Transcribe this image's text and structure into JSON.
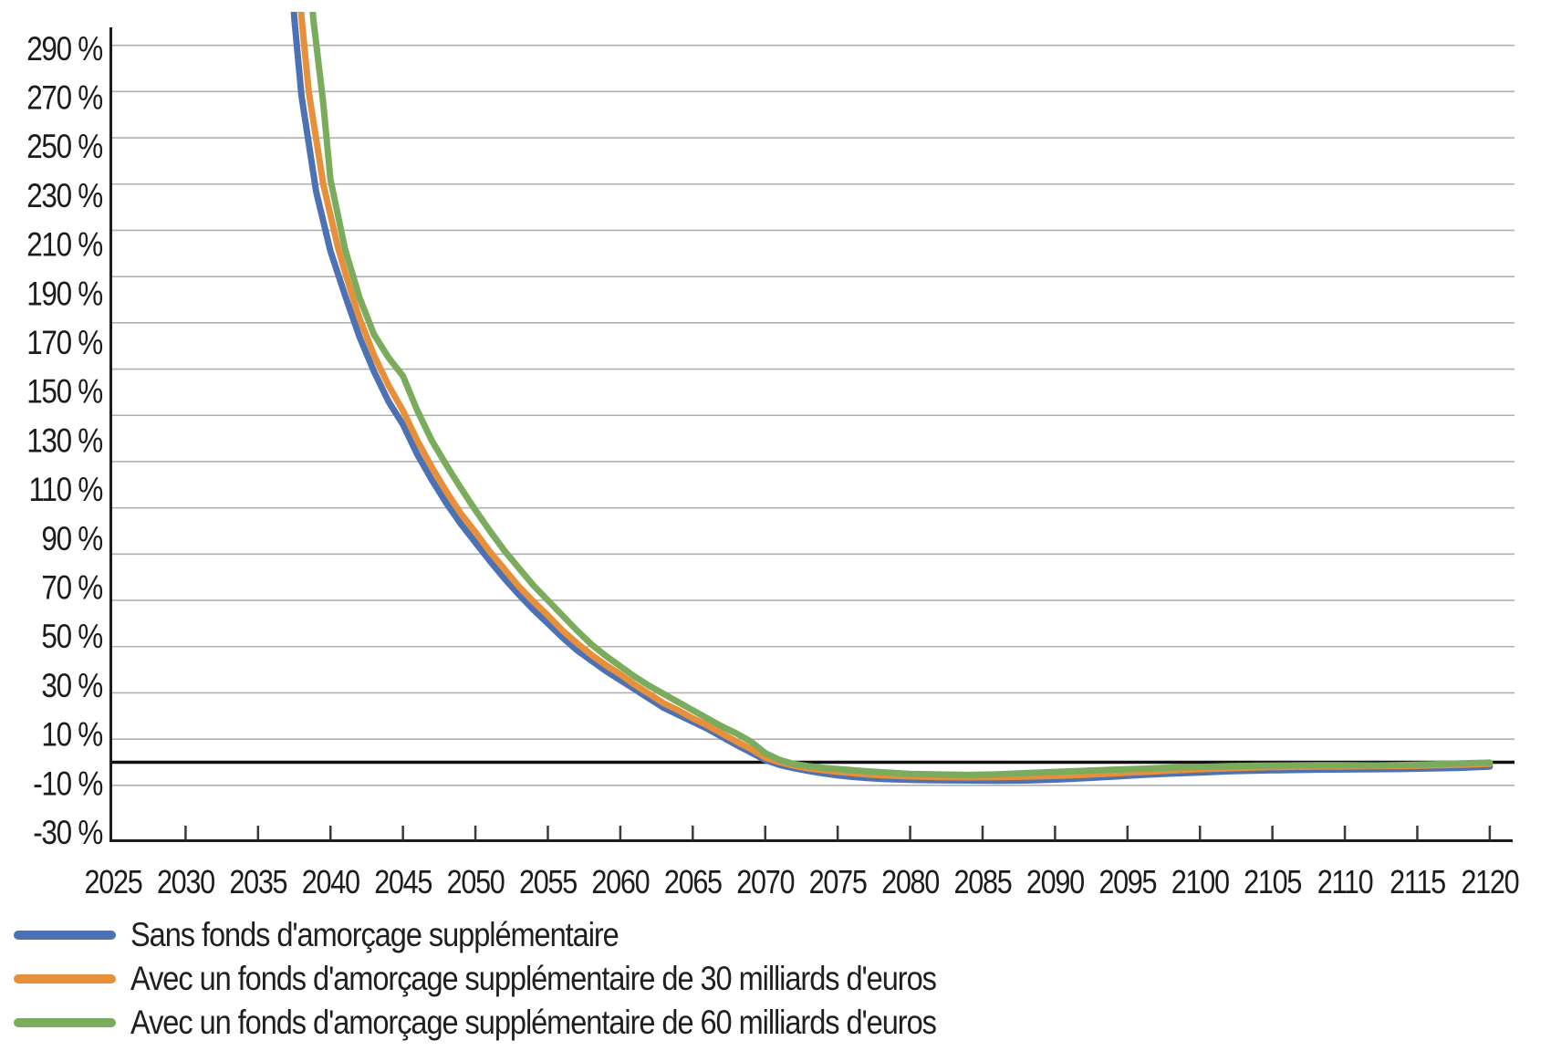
{
  "chart_data": {
    "type": "line",
    "title": "",
    "xlabel": "",
    "ylabel": "",
    "grid": "horizontal",
    "zero_line": true,
    "legend_position": "bottom-left",
    "xlim": [
      2024.8,
      2121.7
    ],
    "ylim": [
      -33,
      324
    ],
    "x_ticks": [
      2025,
      2030,
      2035,
      2040,
      2045,
      2050,
      2055,
      2060,
      2065,
      2070,
      2075,
      2080,
      2085,
      2090,
      2095,
      2100,
      2105,
      2110,
      2115,
      2120
    ],
    "y_ticks": [
      -30,
      -10,
      10,
      30,
      50,
      70,
      90,
      110,
      130,
      150,
      170,
      190,
      210,
      230,
      250,
      270,
      290
    ],
    "y_tick_suffix": " %",
    "y_gridlines": {
      "from": -10,
      "to": 310,
      "step": 20
    },
    "colors": {
      "grid": "#b0b0b0",
      "axis": "#1c1c1c",
      "zero_line": "#111111",
      "text": "#1f1f1f",
      "background": "#ffffff"
    },
    "series": [
      {
        "name": "Sans fonds d'amorçage supplémentaire",
        "color": "#4D72B3",
        "points": [
          [
            2036.6,
            420
          ],
          [
            2037.5,
            322
          ],
          [
            2038,
            288
          ],
          [
            2039,
            247
          ],
          [
            2040,
            221
          ],
          [
            2041,
            202
          ],
          [
            2042,
            184
          ],
          [
            2043,
            169
          ],
          [
            2044,
            156
          ],
          [
            2045,
            146
          ],
          [
            2046,
            133
          ],
          [
            2047,
            122
          ],
          [
            2048,
            112
          ],
          [
            2049,
            103
          ],
          [
            2050,
            95
          ],
          [
            2051,
            87
          ],
          [
            2052,
            79.5
          ],
          [
            2053,
            72.5
          ],
          [
            2054,
            66
          ],
          [
            2055,
            60
          ],
          [
            2056,
            54
          ],
          [
            2057,
            48.5
          ],
          [
            2058,
            44
          ],
          [
            2059,
            39.5
          ],
          [
            2060,
            35.5
          ],
          [
            2061,
            31.5
          ],
          [
            2062,
            27.5
          ],
          [
            2063,
            23.5
          ],
          [
            2064,
            20.5
          ],
          [
            2065,
            17.5
          ],
          [
            2066,
            14.5
          ],
          [
            2067,
            11
          ],
          [
            2068,
            7.5
          ],
          [
            2069,
            4.3
          ],
          [
            2070,
            1
          ],
          [
            2071,
            -1.2
          ],
          [
            2072,
            -2.6
          ],
          [
            2073,
            -3.8
          ],
          [
            2074,
            -4.8
          ],
          [
            2075,
            -5.7
          ],
          [
            2076,
            -6.3
          ],
          [
            2077,
            -6.8
          ],
          [
            2078,
            -7.2
          ],
          [
            2080,
            -7.6
          ],
          [
            2082,
            -7.8
          ],
          [
            2084,
            -7.9
          ],
          [
            2086,
            -8
          ],
          [
            2088,
            -7.9
          ],
          [
            2090,
            -7.5
          ],
          [
            2092,
            -6.9
          ],
          [
            2094,
            -6.2
          ],
          [
            2096,
            -5.5
          ],
          [
            2098,
            -4.9
          ],
          [
            2100,
            -4.4
          ],
          [
            2102,
            -3.9
          ],
          [
            2104,
            -3.6
          ],
          [
            2106,
            -3.4
          ],
          [
            2108,
            -3.2
          ],
          [
            2110,
            -3.1
          ],
          [
            2112,
            -3
          ],
          [
            2114,
            -2.9
          ],
          [
            2116,
            -2.7
          ],
          [
            2118,
            -2.4
          ],
          [
            2120,
            -1.9
          ]
        ]
      },
      {
        "name": "Avec un fonds d'amorçage supplémentaire de 30 milliards d'euros",
        "color": "#E88F3C",
        "points": [
          [
            2037.1,
            420
          ],
          [
            2038,
            322
          ],
          [
            2038.5,
            290
          ],
          [
            2039.5,
            250
          ],
          [
            2040.5,
            223
          ],
          [
            2041,
            212
          ],
          [
            2042,
            192
          ],
          [
            2043,
            176
          ],
          [
            2044,
            163
          ],
          [
            2045,
            152
          ],
          [
            2046,
            139
          ],
          [
            2047,
            127.5
          ],
          [
            2048,
            117
          ],
          [
            2049,
            107.5
          ],
          [
            2050,
            99.5
          ],
          [
            2051,
            91
          ],
          [
            2052,
            83.5
          ],
          [
            2053,
            76
          ],
          [
            2054,
            69.5
          ],
          [
            2055,
            63.5
          ],
          [
            2056,
            57
          ],
          [
            2057,
            51.5
          ],
          [
            2058,
            46.5
          ],
          [
            2059,
            42
          ],
          [
            2060,
            38
          ],
          [
            2061,
            33.5
          ],
          [
            2062,
            29.5
          ],
          [
            2063,
            25.5
          ],
          [
            2064,
            22.5
          ],
          [
            2065,
            19
          ],
          [
            2066,
            16
          ],
          [
            2067,
            12.5
          ],
          [
            2068,
            9
          ],
          [
            2069,
            5.8
          ],
          [
            2070,
            2
          ],
          [
            2071,
            0
          ],
          [
            2072,
            -1.5
          ],
          [
            2073,
            -2.7
          ],
          [
            2074,
            -3.4
          ],
          [
            2075,
            -4.1
          ],
          [
            2076,
            -4.7
          ],
          [
            2077,
            -5.2
          ],
          [
            2078,
            -5.6
          ],
          [
            2080,
            -6.1
          ],
          [
            2082,
            -6.4
          ],
          [
            2084,
            -6.5
          ],
          [
            2086,
            -6.4
          ],
          [
            2088,
            -6.2
          ],
          [
            2090,
            -5.9
          ],
          [
            2092,
            -5.4
          ],
          [
            2094,
            -4.8
          ],
          [
            2096,
            -4.2
          ],
          [
            2098,
            -3.6
          ],
          [
            2100,
            -3
          ],
          [
            2102,
            -2.6
          ],
          [
            2104,
            -2.2
          ],
          [
            2106,
            -2
          ],
          [
            2108,
            -1.9
          ],
          [
            2110,
            -1.8
          ],
          [
            2112,
            -1.7
          ],
          [
            2114,
            -1.6
          ],
          [
            2116,
            -1.4
          ],
          [
            2118,
            -1.1
          ],
          [
            2120,
            -0.7
          ]
        ]
      },
      {
        "name": "Avec un fonds d'amorçage supplémentaire de 60 milliards d'euros",
        "color": "#7BAC5E",
        "points": [
          [
            2037.9,
            420
          ],
          [
            2038.8,
            322
          ],
          [
            2039.5,
            285
          ],
          [
            2040,
            252
          ],
          [
            2041,
            222
          ],
          [
            2042,
            201
          ],
          [
            2043,
            185
          ],
          [
            2044,
            175
          ],
          [
            2045,
            167
          ],
          [
            2046,
            152
          ],
          [
            2047,
            139
          ],
          [
            2048,
            128.5
          ],
          [
            2049,
            118.5
          ],
          [
            2050,
            109
          ],
          [
            2051,
            100
          ],
          [
            2052,
            91.5
          ],
          [
            2053,
            84
          ],
          [
            2054,
            76.5
          ],
          [
            2055,
            70
          ],
          [
            2056,
            63.5
          ],
          [
            2057,
            57
          ],
          [
            2058,
            51
          ],
          [
            2059,
            46
          ],
          [
            2060,
            41.5
          ],
          [
            2061,
            37
          ],
          [
            2062,
            33
          ],
          [
            2063,
            29.5
          ],
          [
            2064,
            26
          ],
          [
            2065,
            22.5
          ],
          [
            2066,
            19
          ],
          [
            2067,
            15.5
          ],
          [
            2068,
            12.5
          ],
          [
            2069,
            9
          ],
          [
            2070,
            4
          ],
          [
            2071,
            1
          ],
          [
            2072,
            -0.8
          ],
          [
            2073,
            -1.7
          ],
          [
            2074,
            -2.4
          ],
          [
            2075,
            -2.9
          ],
          [
            2076,
            -3.4
          ],
          [
            2077,
            -3.9
          ],
          [
            2078,
            -4.3
          ],
          [
            2080,
            -5
          ],
          [
            2082,
            -5.3
          ],
          [
            2084,
            -5.5
          ],
          [
            2086,
            -5.2
          ],
          [
            2088,
            -4.7
          ],
          [
            2090,
            -4.2
          ],
          [
            2092,
            -3.7
          ],
          [
            2094,
            -3.2
          ],
          [
            2096,
            -2.8
          ],
          [
            2098,
            -2.3
          ],
          [
            2100,
            -2
          ],
          [
            2102,
            -1.7
          ],
          [
            2104,
            -1.5
          ],
          [
            2106,
            -1.4
          ],
          [
            2108,
            -1.3
          ],
          [
            2110,
            -1.3
          ],
          [
            2112,
            -1.4
          ],
          [
            2114,
            -1.2
          ],
          [
            2116,
            -0.9
          ],
          [
            2118,
            -0.5
          ],
          [
            2120,
            -0.15
          ]
        ]
      }
    ]
  }
}
